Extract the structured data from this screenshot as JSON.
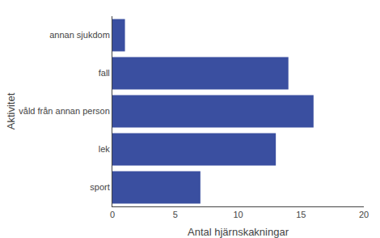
{
  "chart_data": {
    "type": "bar",
    "orientation": "horizontal",
    "categories": [
      "sport",
      "lek",
      "våld från annan person",
      "fall",
      "annan sjukdom"
    ],
    "values": [
      7,
      13,
      16,
      14,
      1
    ],
    "color": "#3A4FA0",
    "xlabel": "Antal hjärnskakningar",
    "ylabel": "Aktivitet",
    "xlim": [
      0,
      20
    ],
    "xticks": [
      0,
      5,
      10,
      15,
      20
    ],
    "grid": false
  }
}
